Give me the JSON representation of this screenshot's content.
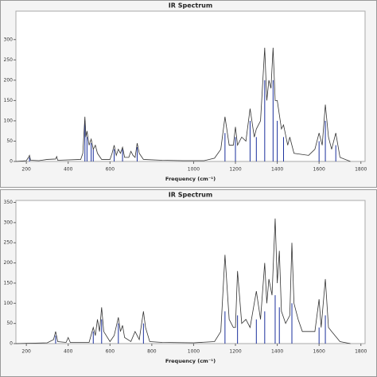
{
  "chart_data": [
    {
      "type": "line",
      "title": "IR Spectrum",
      "x_label": "Frequency (cm⁻¹)",
      "xlim": [
        150,
        1820
      ],
      "xticks": [
        200,
        400,
        600,
        1000,
        1200,
        1400,
        1600,
        1800
      ],
      "ylim": [
        0,
        370
      ],
      "yticks": [
        0,
        50,
        100,
        150,
        200,
        250,
        300
      ],
      "x": [
        150,
        200,
        210,
        215,
        220,
        260,
        300,
        340,
        345,
        350,
        460,
        470,
        480,
        485,
        490,
        500,
        510,
        520,
        530,
        540,
        560,
        600,
        610,
        620,
        630,
        640,
        650,
        660,
        670,
        690,
        700,
        710,
        720,
        730,
        740,
        760,
        850,
        950,
        1050,
        1100,
        1130,
        1150,
        1170,
        1190,
        1200,
        1210,
        1230,
        1250,
        1270,
        1290,
        1300,
        1320,
        1340,
        1350,
        1360,
        1370,
        1380,
        1390,
        1400,
        1420,
        1430,
        1450,
        1460,
        1480,
        1550,
        1580,
        1600,
        1615,
        1630,
        1645,
        1660,
        1680,
        1700,
        1750
      ],
      "series": [
        {
          "color": "#333333",
          "values": [
            0,
            2,
            10,
            15,
            3,
            2,
            5,
            6,
            12,
            3,
            5,
            20,
            110,
            60,
            75,
            40,
            55,
            30,
            40,
            20,
            5,
            5,
            20,
            40,
            15,
            30,
            20,
            35,
            10,
            10,
            25,
            15,
            10,
            45,
            20,
            5,
            3,
            2,
            2,
            8,
            30,
            110,
            40,
            40,
            85,
            40,
            60,
            50,
            130,
            60,
            80,
            100,
            280,
            150,
            200,
            180,
            280,
            150,
            150,
            80,
            90,
            40,
            60,
            20,
            15,
            30,
            70,
            40,
            140,
            60,
            30,
            70,
            10,
            0
          ]
        }
      ],
      "sticks": {
        "color": "#1a2f9c",
        "x": [
          215,
          480,
          490,
          510,
          520,
          620,
          660,
          730,
          1150,
          1200,
          1270,
          1300,
          1340,
          1380,
          1400,
          1430,
          1600,
          1630,
          1680
        ],
        "values": [
          10,
          100,
          60,
          45,
          30,
          30,
          30,
          35,
          70,
          60,
          100,
          60,
          200,
          200,
          100,
          60,
          50,
          100,
          40
        ]
      }
    },
    {
      "type": "line",
      "title": "IR Spectrum",
      "x_label": "Frequency (cm⁻¹)",
      "xlim": [
        150,
        1820
      ],
      "xticks": [
        200,
        400,
        600,
        800,
        1000,
        1200,
        1400,
        1600,
        1800
      ],
      "ylim": [
        0,
        355
      ],
      "yticks": [
        0,
        50,
        100,
        150,
        200,
        250,
        300,
        350
      ],
      "x": [
        150,
        300,
        330,
        340,
        350,
        390,
        400,
        410,
        500,
        520,
        530,
        540,
        550,
        560,
        570,
        600,
        620,
        640,
        650,
        660,
        670,
        700,
        720,
        740,
        760,
        770,
        790,
        850,
        1000,
        1100,
        1130,
        1150,
        1170,
        1190,
        1200,
        1210,
        1230,
        1250,
        1270,
        1300,
        1320,
        1340,
        1350,
        1360,
        1375,
        1390,
        1400,
        1410,
        1420,
        1440,
        1460,
        1470,
        1480,
        1500,
        1520,
        1580,
        1600,
        1610,
        1630,
        1645,
        1660,
        1700,
        1750
      ],
      "series": [
        {
          "color": "#333333",
          "values": [
            0,
            2,
            10,
            30,
            5,
            3,
            15,
            3,
            3,
            40,
            20,
            60,
            30,
            90,
            30,
            5,
            20,
            65,
            30,
            45,
            15,
            5,
            30,
            10,
            80,
            40,
            5,
            3,
            2,
            5,
            30,
            220,
            60,
            40,
            40,
            180,
            50,
            60,
            40,
            130,
            60,
            200,
            100,
            160,
            120,
            310,
            150,
            230,
            80,
            50,
            70,
            250,
            100,
            60,
            30,
            30,
            110,
            40,
            160,
            40,
            30,
            5,
            0
          ]
        }
      ],
      "sticks": {
        "color": "#1a2f9c",
        "x": [
          340,
          520,
          560,
          640,
          760,
          1150,
          1210,
          1300,
          1340,
          1390,
          1410,
          1470,
          1600,
          1630
        ],
        "values": [
          20,
          30,
          60,
          50,
          50,
          80,
          70,
          60,
          80,
          120,
          90,
          100,
          40,
          70
        ]
      }
    }
  ]
}
